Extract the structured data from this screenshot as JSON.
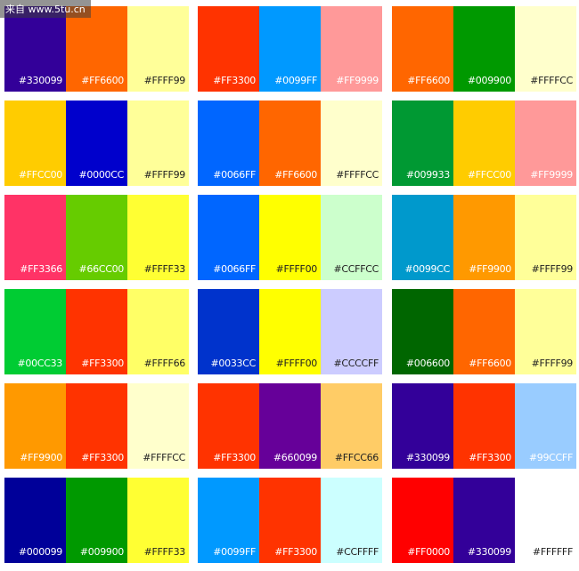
{
  "watermark": "来自 www.5tu.cn",
  "palettes": [
    [
      "#330099",
      "#FF6600",
      "#FFFF99"
    ],
    [
      "#FF3300",
      "#0099FF",
      "#FF9999"
    ],
    [
      "#FF6600",
      "#009900",
      "#FFFFCC"
    ],
    [
      "#FFCC00",
      "#0000CC",
      "#FFFF99"
    ],
    [
      "#0066FF",
      "#FF6600",
      "#FFFFCC"
    ],
    [
      "#009933",
      "#FFCC00",
      "#FF9999"
    ],
    [
      "#FF3366",
      "#66CC00",
      "#FFFF33"
    ],
    [
      "#0066FF",
      "#FFFF00",
      "#CCFFCC"
    ],
    [
      "#0099CC",
      "#FF9900",
      "#FFFF99"
    ],
    [
      "#00CC33",
      "#FF3300",
      "#FFFF66"
    ],
    [
      "#0033CC",
      "#FFFF00",
      "#CCCCFF"
    ],
    [
      "#006600",
      "#FF6600",
      "#FFFF99"
    ],
    [
      "#FF9900",
      "#FF3300",
      "#FFFFCC"
    ],
    [
      "#FF3300",
      "#660099",
      "#FFCC66"
    ],
    [
      "#330099",
      "#FF3300",
      "#99CCFF"
    ],
    [
      "#000099",
      "#009900",
      "#FFFF33"
    ],
    [
      "#0099FF",
      "#FF3300",
      "#CCFFFF"
    ],
    [
      "#FF0000",
      "#330099",
      "#FFFFFF"
    ]
  ]
}
